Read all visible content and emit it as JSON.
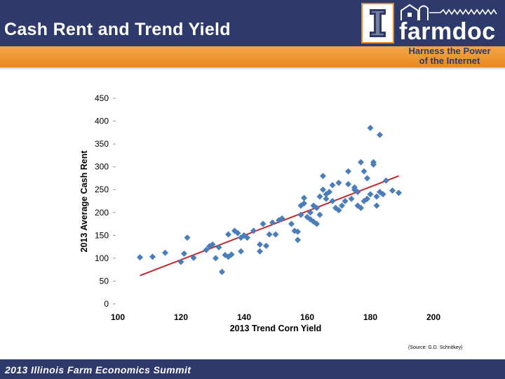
{
  "header": {
    "title": "Cash Rent and Trend Yield",
    "brand": "farmdoc",
    "tagline_line1": "Harness the Power",
    "tagline_line2": "of the Internet",
    "logo_icon": "illinois-block-i-icon",
    "house_icon": "farm-buildings-icon"
  },
  "colors": {
    "navy": "#2e3a6b",
    "orange": "#e8891e",
    "marker": "#4a7ebb",
    "trendline": "#c0282d"
  },
  "source_note": "(Source: G.D. Schnitkey)",
  "footer": {
    "text": "2013 Illinois Farm Economics Summit"
  },
  "chart_data": {
    "type": "scatter",
    "xlabel": "2013 Trend Corn Yield",
    "ylabel": "2013 Average Cash Rent",
    "xlim": [
      100,
      200
    ],
    "ylim": [
      0,
      450
    ],
    "x_ticks": [
      100,
      120,
      140,
      160,
      180,
      200
    ],
    "y_ticks": [
      0,
      50,
      100,
      150,
      200,
      250,
      300,
      350,
      400,
      450
    ],
    "grid": false,
    "legend": "none",
    "trendline": {
      "x": [
        107,
        189
      ],
      "y": [
        62,
        280
      ]
    },
    "series": [
      {
        "marker": "diamond",
        "points": [
          [
            107,
            102
          ],
          [
            111,
            103
          ],
          [
            115,
            112
          ],
          [
            120,
            92
          ],
          [
            121,
            110
          ],
          [
            122,
            145
          ],
          [
            124,
            101
          ],
          [
            128,
            118
          ],
          [
            129,
            126
          ],
          [
            130,
            130
          ],
          [
            131,
            100
          ],
          [
            132,
            124
          ],
          [
            133,
            70
          ],
          [
            134,
            107
          ],
          [
            135,
            103
          ],
          [
            135,
            152
          ],
          [
            136,
            108
          ],
          [
            137,
            160
          ],
          [
            138,
            155
          ],
          [
            139,
            115
          ],
          [
            139,
            145
          ],
          [
            140,
            150
          ],
          [
            141,
            145
          ],
          [
            143,
            160
          ],
          [
            145,
            115
          ],
          [
            145,
            130
          ],
          [
            146,
            175
          ],
          [
            147,
            127
          ],
          [
            148,
            152
          ],
          [
            149,
            178
          ],
          [
            150,
            152
          ],
          [
            151,
            183
          ],
          [
            152,
            187
          ],
          [
            155,
            175
          ],
          [
            156,
            160
          ],
          [
            157,
            140
          ],
          [
            157,
            158
          ],
          [
            158,
            215
          ],
          [
            158,
            195
          ],
          [
            159,
            220
          ],
          [
            159,
            232
          ],
          [
            160,
            190
          ],
          [
            161,
            200
          ],
          [
            161,
            185
          ],
          [
            162,
            180
          ],
          [
            162,
            215
          ],
          [
            163,
            175
          ],
          [
            163,
            210
          ],
          [
            164,
            195
          ],
          [
            164,
            235
          ],
          [
            165,
            250
          ],
          [
            165,
            280
          ],
          [
            166,
            240
          ],
          [
            166,
            230
          ],
          [
            167,
            245
          ],
          [
            168,
            225
          ],
          [
            168,
            260
          ],
          [
            169,
            210
          ],
          [
            170,
            205
          ],
          [
            170,
            265
          ],
          [
            171,
            215
          ],
          [
            172,
            225
          ],
          [
            173,
            262
          ],
          [
            173,
            290
          ],
          [
            174,
            230
          ],
          [
            175,
            255
          ],
          [
            175,
            250
          ],
          [
            176,
            215
          ],
          [
            176,
            245
          ],
          [
            177,
            210
          ],
          [
            177,
            310
          ],
          [
            178,
            290
          ],
          [
            178,
            225
          ],
          [
            179,
            230
          ],
          [
            179,
            275
          ],
          [
            180,
            385
          ],
          [
            180,
            240
          ],
          [
            181,
            310
          ],
          [
            181,
            305
          ],
          [
            182,
            215
          ],
          [
            182,
            235
          ],
          [
            183,
            245
          ],
          [
            183,
            370
          ],
          [
            184,
            240
          ],
          [
            185,
            270
          ],
          [
            187,
            248
          ],
          [
            189,
            243
          ]
        ]
      }
    ]
  }
}
